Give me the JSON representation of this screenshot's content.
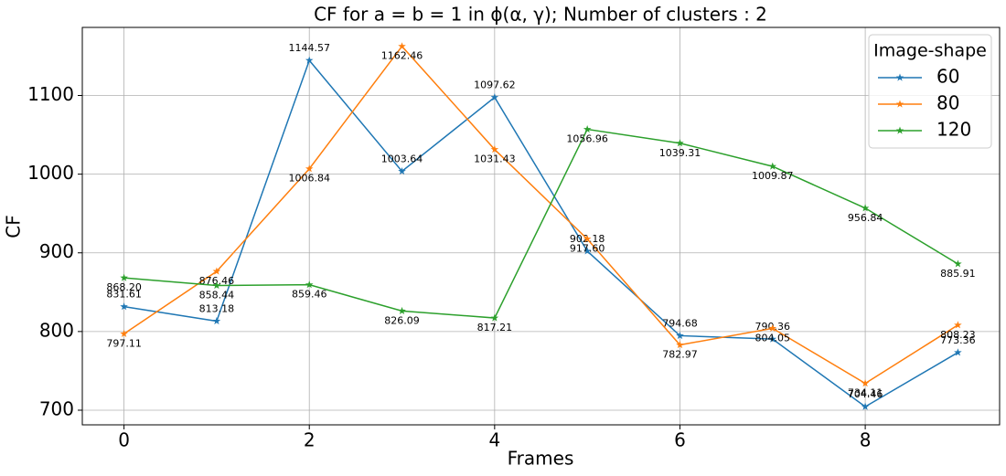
{
  "chart_data": {
    "type": "line",
    "title": "CF for a = b = 1 in ϕ(α, γ); Number of clusters : 2",
    "x_label": "Frames",
    "y_label": "CF",
    "x": [
      0,
      1,
      2,
      3,
      4,
      5,
      6,
      7,
      8,
      9
    ],
    "series": [
      {
        "name": "60",
        "color": "#1f77b4",
        "values": [
          831.61,
          813.18,
          1144.57,
          1003.64,
          1097.62,
          902.18,
          794.68,
          790.36,
          704.46,
          773.36
        ],
        "value_labels": [
          "831.61",
          "813.18",
          "1144.57",
          "1003.64",
          "1097.62",
          "902.18",
          "794.68",
          "790.36",
          "704.46",
          "773.36"
        ]
      },
      {
        "name": "80",
        "color": "#ff7f0e",
        "values": [
          797.11,
          876.46,
          1006.84,
          1162.46,
          1031.43,
          917.6,
          782.97,
          804.05,
          734.11,
          808.23
        ],
        "value_labels": [
          "797.11",
          "876.46",
          "1006.84",
          "1162.46",
          "1031.43",
          "917.60",
          "782.97",
          "804.05",
          "734.11",
          "808.23"
        ]
      },
      {
        "name": "120",
        "color": "#2ca02c",
        "values": [
          868.2,
          858.44,
          859.46,
          826.09,
          817.21,
          1056.96,
          1039.31,
          1009.87,
          956.84,
          885.91
        ],
        "value_labels": [
          "868.20",
          "858.44",
          "859.46",
          "826.09",
          "817.21",
          "1056.96",
          "1039.31",
          "1009.87",
          "956.84",
          "885.91"
        ]
      }
    ],
    "legend_title": "Image-shape",
    "legend": "upper right",
    "xlim": [
      -0.45,
      9.45
    ],
    "xticks": [
      0,
      2,
      4,
      6,
      8
    ],
    "ylim": [
      681.4,
      1186.5
    ],
    "yticks": [
      700,
      800,
      900,
      1000,
      1100
    ],
    "grid": true
  }
}
